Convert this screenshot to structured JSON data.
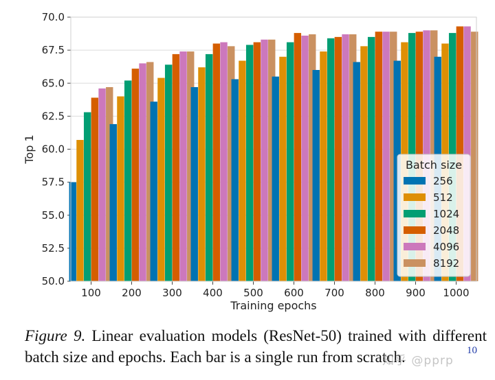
{
  "chart_data": {
    "type": "bar",
    "title": "",
    "xlabel": "Training epochs",
    "ylabel": "Top 1",
    "categories": [
      "100",
      "200",
      "300",
      "400",
      "500",
      "600",
      "700",
      "800",
      "900",
      "1000"
    ],
    "ylim": [
      50.0,
      70.0
    ],
    "yticks": [
      "50.0",
      "52.5",
      "55.0",
      "57.5",
      "60.0",
      "62.5",
      "65.0",
      "67.5",
      "70.0"
    ],
    "grid": "horizontal",
    "legend": {
      "title": "Batch size",
      "position": "lower-right"
    },
    "series": [
      {
        "name": "256",
        "color": "#0173b2",
        "values": [
          57.5,
          61.9,
          63.6,
          64.7,
          65.3,
          65.5,
          66.0,
          66.6,
          66.7,
          67.0
        ]
      },
      {
        "name": "512",
        "color": "#de8f05",
        "values": [
          60.7,
          64.0,
          65.4,
          66.2,
          66.7,
          67.0,
          67.4,
          67.8,
          68.1,
          68.0
        ]
      },
      {
        "name": "1024",
        "color": "#029e73",
        "values": [
          62.8,
          65.2,
          66.4,
          67.2,
          67.9,
          68.1,
          68.4,
          68.5,
          68.8,
          68.8
        ]
      },
      {
        "name": "2048",
        "color": "#d55e00",
        "values": [
          63.9,
          66.1,
          67.2,
          68.0,
          68.1,
          68.8,
          68.5,
          68.9,
          68.9,
          69.3
        ]
      },
      {
        "name": "4096",
        "color": "#cc78bc",
        "values": [
          64.6,
          66.5,
          67.4,
          68.1,
          68.3,
          68.6,
          68.7,
          68.9,
          69.0,
          69.3
        ]
      },
      {
        "name": "8192",
        "color": "#ca9161",
        "values": [
          64.7,
          66.6,
          67.4,
          67.8,
          68.3,
          68.7,
          68.7,
          68.9,
          69.0,
          68.9
        ]
      }
    ]
  },
  "caption": {
    "label": "Figure 9.",
    "text": " Linear evaluation models (ResNet-50) trained with different batch size and epochs. Each bar is a single run from scratch."
  },
  "page_number": "10",
  "watermark": "知乎 @pprp"
}
